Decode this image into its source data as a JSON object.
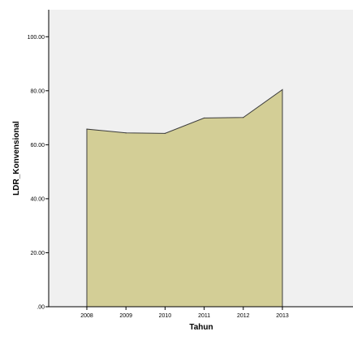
{
  "chart_data": {
    "type": "area",
    "title": "",
    "xlabel": "Tahun",
    "ylabel": "LDR_Konvensional",
    "categories": [
      "2008",
      "2009",
      "2010",
      "2011",
      "2012",
      "2013"
    ],
    "series": [
      {
        "values": [
          65.8,
          64.4,
          64.2,
          69.9,
          70.1,
          80.4
        ]
      }
    ],
    "ylim": [
      0,
      110
    ],
    "yticks": [
      0,
      20,
      40,
      60,
      80,
      100
    ],
    "ytick_labels": [
      ".00",
      "20.00",
      "40.00",
      "60.00",
      "80.00",
      "100.00"
    ],
    "grid": false,
    "colors": {
      "plot_background": "#F0F0F0",
      "area_fill": "#D3CE96",
      "area_stroke": "#3C3C3C",
      "axis": "#000000",
      "page_background": "#FFFFFF"
    }
  }
}
